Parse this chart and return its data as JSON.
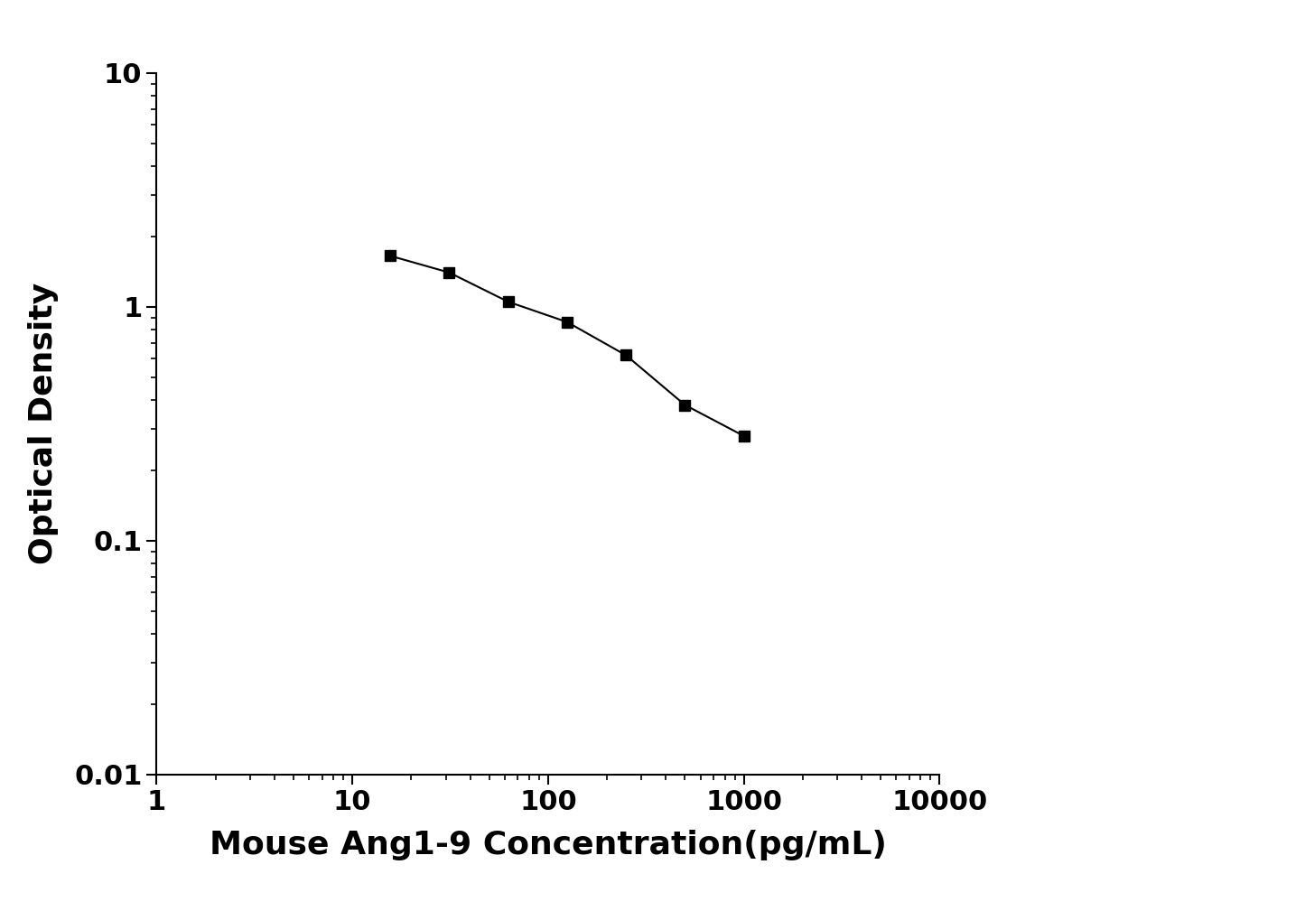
{
  "x_values": [
    15.625,
    31.25,
    62.5,
    125,
    250,
    500,
    1000
  ],
  "y_values": [
    1.65,
    1.4,
    1.05,
    0.86,
    0.62,
    0.38,
    0.28
  ],
  "xlabel": "Mouse Ang1-9 Concentration(pg/mL)",
  "ylabel": "Optical Density",
  "xlim": [
    1,
    10000
  ],
  "ylim": [
    0.01,
    10
  ],
  "line_color": "#000000",
  "marker": "s",
  "marker_size": 9,
  "line_width": 1.5,
  "background_color": "#ffffff",
  "xlabel_fontsize": 26,
  "ylabel_fontsize": 26,
  "tick_fontsize": 22,
  "label_fontweight": "bold"
}
